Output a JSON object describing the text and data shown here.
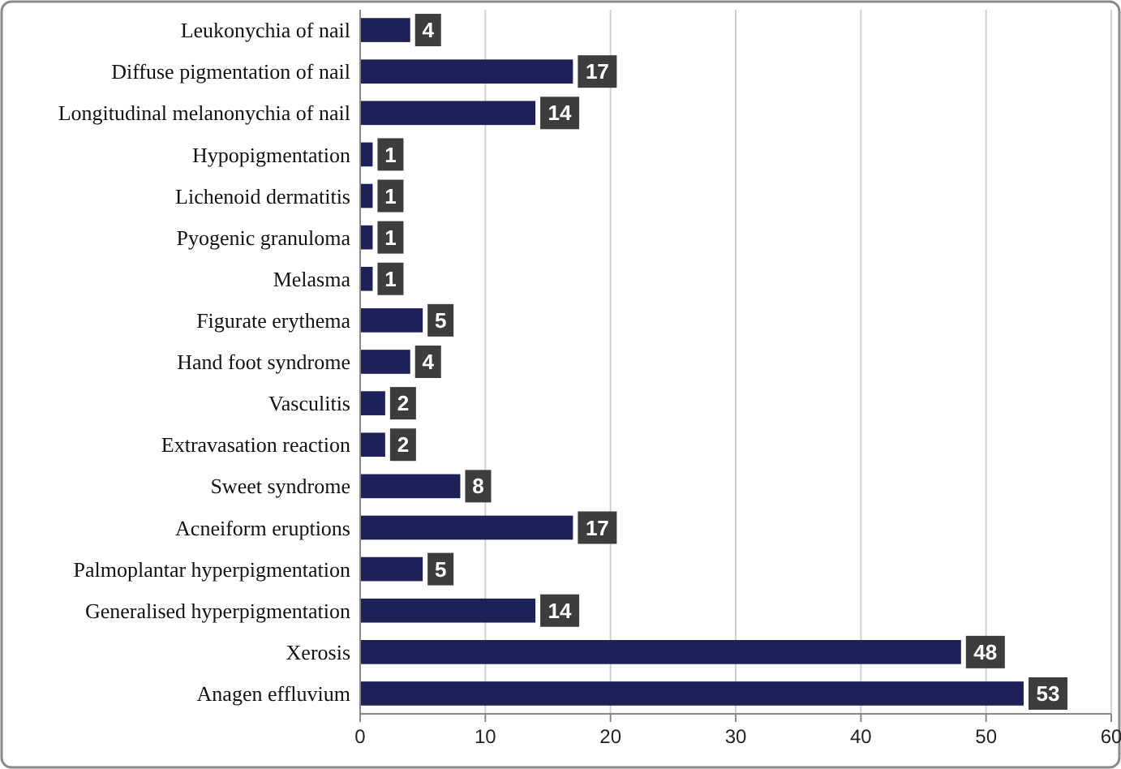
{
  "chart_data": {
    "type": "bar",
    "orientation": "horizontal",
    "categories": [
      "Leukonychia of nail",
      "Diffuse pigmentation of nail",
      "Longitudinal melanonychia of nail",
      "Hypopigmentation",
      "Lichenoid dermatitis",
      "Pyogenic granuloma",
      "Melasma",
      "Figurate erythema",
      "Hand foot syndrome",
      "Vasculitis",
      "Extravasation reaction",
      "Sweet syndrome",
      "Acneiform eruptions",
      "Palmoplantar hyperpigmentation",
      "Generalised hyperpigmentation",
      "Xerosis",
      "Anagen effluvium"
    ],
    "values": [
      4,
      17,
      14,
      1,
      1,
      1,
      1,
      5,
      4,
      2,
      2,
      8,
      17,
      5,
      14,
      48,
      53
    ],
    "color": "#1e2158",
    "xlim": [
      0,
      60
    ],
    "xticks": [
      0,
      10,
      20,
      30,
      40,
      50,
      60
    ],
    "grid": "x",
    "data_labels": true
  }
}
